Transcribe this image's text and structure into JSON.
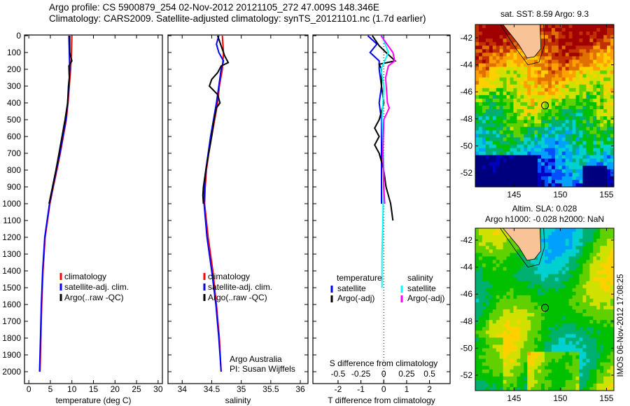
{
  "title_line1": "Argo profile: CS 5900879_254 02-Nov-2012 20121105_272 47.009S 148.346E",
  "title_line2": "Climatology: CARS2009. Satellite-adjusted climatology: synTS_20121101.nc (1.7d earlier)",
  "colors": {
    "climatology": "#ff0000",
    "satellite": "#0000ff",
    "argo": "#000000",
    "s_satellite": "#00ffff",
    "s_argo": "#ff00ff"
  },
  "chart_data": [
    {
      "type": "line",
      "title": "",
      "xlabel": "temperature (deg C)",
      "ylabel": "",
      "xlim": [
        -1,
        31
      ],
      "ylim": [
        2070,
        0
      ],
      "xticks": [
        "0",
        "5",
        "10",
        "15",
        "20",
        "25",
        "30"
      ],
      "yticks": [
        "0",
        "100",
        "200",
        "300",
        "400",
        "500",
        "600",
        "700",
        "800",
        "900",
        "1000",
        "1100",
        "1200",
        "1300",
        "1400",
        "1500",
        "1600",
        "1700",
        "1800",
        "1900",
        "2000"
      ],
      "legend": [
        "climatology",
        "satellite-adj. clim.",
        "Argo(..raw -QC)"
      ],
      "series": [
        {
          "name": "climatology",
          "color": "#ff0000",
          "depth": [
            0,
            100,
            200,
            300,
            400,
            500,
            600,
            700,
            800,
            900,
            1000,
            1200,
            1400,
            1600,
            1800,
            2000
          ],
          "values": [
            10.0,
            9.9,
            9.7,
            9.4,
            9.1,
            8.7,
            8.0,
            7.3,
            6.5,
            5.7,
            4.9,
            3.8,
            3.3,
            3.0,
            2.8,
            2.6
          ]
        },
        {
          "name": "satellite-adj. clim.",
          "color": "#0000ff",
          "depth": [
            0,
            100,
            200,
            300,
            400,
            500,
            600,
            700,
            800,
            900,
            1000,
            1200,
            1400,
            1600,
            1800,
            2000
          ],
          "values": [
            9.3,
            9.4,
            9.5,
            9.3,
            9.0,
            8.6,
            7.9,
            7.2,
            6.4,
            5.6,
            4.8,
            3.7,
            3.2,
            2.9,
            2.7,
            2.5
          ]
        },
        {
          "name": "Argo(..raw -QC)",
          "color": "#000000",
          "depth": [
            0,
            100,
            150,
            180,
            250,
            300,
            400,
            500,
            600,
            700,
            800,
            900,
            1000
          ],
          "values": [
            9.5,
            9.5,
            10.0,
            9.3,
            9.4,
            9.2,
            9.0,
            8.4,
            7.7,
            7.0,
            6.3,
            5.5,
            4.7
          ]
        }
      ]
    },
    {
      "type": "line",
      "title": "",
      "xlabel": "salinity",
      "ylabel": "",
      "xlim": [
        33.76,
        36.13
      ],
      "ylim": [
        2070,
        0
      ],
      "xticks": [
        "34",
        "34.5",
        "35",
        "35.5",
        "36"
      ],
      "legend": [
        "climatology",
        "satellite-adj. clim.",
        "Argo(..raw -QC)"
      ],
      "annotation": [
        "Argo Australia",
        "PI: Susan Wijffels"
      ],
      "series": [
        {
          "name": "climatology",
          "color": "#ff0000",
          "depth": [
            0,
            100,
            200,
            300,
            400,
            500,
            600,
            700,
            800,
            900,
            1000,
            1200,
            1400,
            1600,
            1800,
            2000
          ],
          "values": [
            34.68,
            34.7,
            34.68,
            34.63,
            34.6,
            34.55,
            34.5,
            34.45,
            34.41,
            34.39,
            34.38,
            34.44,
            34.52,
            34.58,
            34.63,
            34.66
          ]
        },
        {
          "name": "satellite-adj. clim.",
          "color": "#0000ff",
          "depth": [
            0,
            50,
            100,
            150,
            200,
            300,
            400,
            500,
            600,
            700,
            800,
            900,
            1000,
            1200,
            1400,
            1600,
            1800,
            2000
          ],
          "values": [
            34.62,
            34.58,
            34.62,
            34.7,
            34.66,
            34.62,
            34.58,
            34.53,
            34.48,
            34.44,
            34.4,
            34.38,
            34.37,
            34.42,
            34.5,
            34.57,
            34.62,
            34.66
          ]
        },
        {
          "name": "Argo(..raw -QC)",
          "color": "#000000",
          "depth": [
            0,
            60,
            120,
            160,
            180,
            220,
            260,
            300,
            350,
            400,
            430,
            500,
            600,
            700,
            800,
            900,
            950,
            1000
          ],
          "values": [
            34.6,
            34.66,
            34.72,
            34.78,
            34.66,
            34.6,
            34.5,
            34.46,
            34.6,
            34.64,
            34.58,
            34.54,
            34.5,
            34.45,
            34.4,
            34.36,
            34.35,
            34.36
          ]
        }
      ]
    },
    {
      "type": "line",
      "title": "",
      "xlabel": "T difference from climatology",
      "x2label": "S difference from climatology",
      "xlim": [
        -3.1,
        2.9
      ],
      "ylim": [
        2070,
        0
      ],
      "xticks": [
        "-2",
        "-1",
        "0",
        "1",
        "2"
      ],
      "x2ticks": [
        "-0.5",
        "-0.25",
        "0",
        "0.25",
        "0.5"
      ],
      "legend_temperature": {
        "header": "temperature",
        "items": [
          "satellite",
          "Argo(-adj)"
        ]
      },
      "legend_salinity": {
        "header": "salinity",
        "items": [
          "satellite",
          "Argo(-adj)"
        ]
      },
      "series": [
        {
          "name": "T satellite",
          "color": "#0000ff",
          "depth": [
            0,
            50,
            100,
            150,
            200,
            300,
            400,
            500,
            700,
            1000
          ],
          "values": [
            -0.7,
            -0.3,
            -0.6,
            -0.2,
            -0.2,
            -0.1,
            -0.2,
            -0.1,
            -0.1,
            -0.1
          ]
        },
        {
          "name": "T Argo(-adj)",
          "color": "#000000",
          "depth": [
            0,
            60,
            100,
            150,
            170,
            200,
            300,
            400,
            500,
            550,
            600,
            650,
            700,
            800,
            900,
            1000,
            1100
          ],
          "values": [
            -0.5,
            -0.2,
            0.1,
            0.5,
            -0.2,
            -0.1,
            -0.1,
            0.0,
            -0.2,
            -0.4,
            -0.2,
            -0.4,
            -0.2,
            0.0,
            0.1,
            0.3,
            0.4
          ]
        },
        {
          "name": "S satellite",
          "color": "#00ffff",
          "depth": [
            0,
            100,
            200,
            300,
            500,
            800,
            1100,
            1300,
            1500
          ],
          "values": [
            -0.02,
            0.05,
            -0.03,
            0.0,
            -0.02,
            0.0,
            -0.01,
            -0.02,
            -0.02
          ]
        },
        {
          "name": "S Argo(-adj)",
          "color": "#ff00ff",
          "depth": [
            0,
            100,
            150,
            180,
            250,
            400,
            430,
            500,
            700,
            900,
            1000
          ],
          "values": [
            -0.03,
            0.1,
            0.12,
            0.05,
            0.02,
            0.04,
            0.06,
            0.0,
            -0.01,
            0.0,
            0.01
          ]
        }
      ]
    }
  ],
  "map_sst": {
    "title": "sat. SST: 8.59 Argo: 9.3",
    "xticks": [
      "145",
      "150",
      "155"
    ],
    "yticks": [
      "-42",
      "-44",
      "-46",
      "-48",
      "-50",
      "-52"
    ]
  },
  "map_sla": {
    "title1": "Altim. SLA: 0.028",
    "title2": "Argo h1000: -0.028 h2000: NaN",
    "xticks": [
      "145",
      "150",
      "155"
    ],
    "yticks": [
      "-42",
      "-44",
      "-46",
      "-48",
      "-50",
      "-52"
    ]
  },
  "timestamp": "IMOS 06-Nov-2012 17:08:25"
}
